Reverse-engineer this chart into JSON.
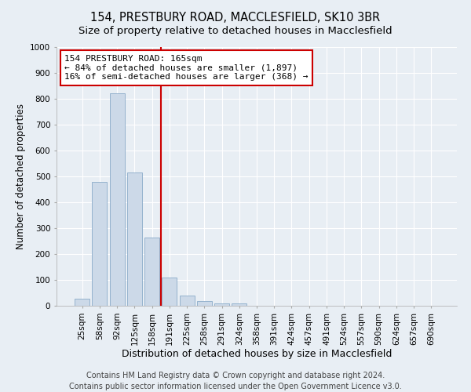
{
  "title_line1": "154, PRESTBURY ROAD, MACCLESFIELD, SK10 3BR",
  "title_line2": "Size of property relative to detached houses in Macclesfield",
  "xlabel": "Distribution of detached houses by size in Macclesfield",
  "ylabel": "Number of detached properties",
  "bar_color": "#ccd9e8",
  "bar_edge_color": "#8aaac8",
  "categories": [
    "25sqm",
    "58sqm",
    "92sqm",
    "125sqm",
    "158sqm",
    "191sqm",
    "225sqm",
    "258sqm",
    "291sqm",
    "324sqm",
    "358sqm",
    "391sqm",
    "424sqm",
    "457sqm",
    "491sqm",
    "524sqm",
    "557sqm",
    "590sqm",
    "624sqm",
    "657sqm",
    "690sqm"
  ],
  "values": [
    28,
    480,
    820,
    515,
    265,
    110,
    38,
    18,
    10,
    8,
    0,
    0,
    0,
    0,
    0,
    0,
    0,
    0,
    0,
    0,
    0
  ],
  "ylim": [
    0,
    1000
  ],
  "yticks": [
    0,
    100,
    200,
    300,
    400,
    500,
    600,
    700,
    800,
    900,
    1000
  ],
  "vline_x": 4.5,
  "annotation_text": "154 PRESTBURY ROAD: 165sqm\n← 84% of detached houses are smaller (1,897)\n16% of semi-detached houses are larger (368) →",
  "annotation_box_color": "white",
  "annotation_box_edge_color": "#cc0000",
  "vline_color": "#cc0000",
  "footer_line1": "Contains HM Land Registry data © Crown copyright and database right 2024.",
  "footer_line2": "Contains public sector information licensed under the Open Government Licence v3.0.",
  "background_color": "#e8eef4",
  "grid_color": "#ffffff",
  "title1_fontsize": 10.5,
  "title2_fontsize": 9.5,
  "tick_fontsize": 7.5,
  "xlabel_fontsize": 9,
  "ylabel_fontsize": 8.5,
  "footer_fontsize": 7,
  "annot_fontsize": 8
}
